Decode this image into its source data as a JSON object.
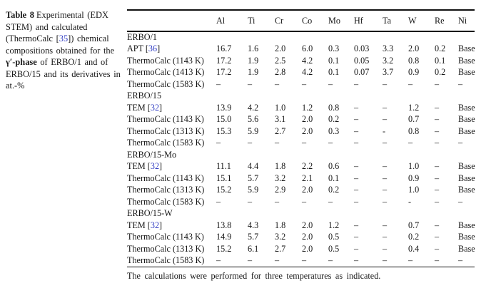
{
  "colors": {
    "reference_link": "#3440c4",
    "text": "#161616",
    "rule": "#111111"
  },
  "caption": {
    "table_label": "Table 8",
    "line1_rest": "Experimental (EDX",
    "line2": "STEM) and calculated",
    "line3_pre": "(ThermoCalc [",
    "line3_ref": "35",
    "line3_post": "]) chemical",
    "line4": "compositions obtained for the",
    "line5_bold": "γ′-phase",
    "line5_rest": " of ERBO/1 and of",
    "line6": "ERBO/15 and its derivatives in",
    "line7": "at.-%"
  },
  "table": {
    "columns": [
      "Al",
      "Ti",
      "Cr",
      "Co",
      "Mo",
      "Hf",
      "Ta",
      "W",
      "Re",
      "Ni"
    ],
    "rows": [
      {
        "type": "section",
        "label": "ERBO/1"
      },
      {
        "type": "data",
        "label_pre": "APT [",
        "ref": "36",
        "label_post": "]",
        "values": [
          "16.7",
          "1.6",
          "2.0",
          "6.0",
          "0.3",
          "0.03",
          "3.3",
          "2.0",
          "0.2",
          "Base"
        ]
      },
      {
        "type": "data",
        "label": "ThermoCalc (1143 K)",
        "values": [
          "17.2",
          "1.9",
          "2.5",
          "4.2",
          "0.1",
          "0.05",
          "3.2",
          "0.8",
          "0.1",
          "Base"
        ]
      },
      {
        "type": "data",
        "label": "ThermoCalc (1413 K)",
        "values": [
          "17.2",
          "1.9",
          "2.8",
          "4.2",
          "0.1",
          "0.07",
          "3.7",
          "0.9",
          "0.2",
          "Base"
        ]
      },
      {
        "type": "data",
        "label": "ThermoCalc (1583 K)",
        "values": [
          "–",
          "–",
          "–",
          "–",
          "–",
          "–",
          "–",
          "–",
          "–",
          "–"
        ]
      },
      {
        "type": "section",
        "label": "ERBO/15"
      },
      {
        "type": "data",
        "label_pre": "TEM [",
        "ref": "32",
        "label_post": "]",
        "values": [
          "13.9",
          "4.2",
          "1.0",
          "1.2",
          "0.8",
          "–",
          "–",
          "1.2",
          "–",
          "Base"
        ]
      },
      {
        "type": "data",
        "label": "ThermoCalc (1143 K)",
        "values": [
          "15.0",
          "5.6",
          "3.1",
          "2.0",
          "0.2",
          "–",
          "–",
          "0.7",
          "–",
          "Base"
        ]
      },
      {
        "type": "data",
        "label": "ThermoCalc (1313 K)",
        "values": [
          "15.3",
          "5.9",
          "2.7",
          "2.0",
          "0.3",
          "–",
          "-",
          "0.8",
          "–",
          "Base"
        ]
      },
      {
        "type": "data",
        "label": "ThermoCalc (1583 K)",
        "values": [
          "–",
          "–",
          "–",
          "–",
          "–",
          "–",
          "–",
          "–",
          "–",
          "–"
        ]
      },
      {
        "type": "section",
        "label": "ERBO/15-Mo"
      },
      {
        "type": "data",
        "label_pre": "TEM [",
        "ref": "32",
        "label_post": "]",
        "values": [
          "11.1",
          "4.4",
          "1.8",
          "2.2",
          "0.6",
          "–",
          "–",
          "1.0",
          "–",
          "Base"
        ]
      },
      {
        "type": "data",
        "label": "ThermoCalc (1143 K)",
        "values": [
          "15.1",
          "5.7",
          "3.2",
          "2.1",
          "0.1",
          "–",
          "–",
          "0.9",
          "–",
          "Base"
        ]
      },
      {
        "type": "data",
        "label": "ThermoCalc (1313 K)",
        "values": [
          "15.2",
          "5.9",
          "2.9",
          "2.0",
          "0.2",
          "–",
          "–",
          "1.0",
          "–",
          "Base"
        ]
      },
      {
        "type": "data",
        "label": "ThermoCalc (1583 K)",
        "values": [
          "–",
          "–",
          "–",
          "–",
          "–",
          "–",
          "–",
          "-",
          "–",
          "–"
        ]
      },
      {
        "type": "section",
        "label": "ERBO/15-W"
      },
      {
        "type": "data",
        "label_pre": "TEM [",
        "ref": "32",
        "label_post": "]",
        "values": [
          "13.8",
          "4.3",
          "1.8",
          "2.0",
          "1.2",
          "–",
          "–",
          "0.7",
          "–",
          "Base"
        ]
      },
      {
        "type": "data",
        "label": "ThermoCalc (1143 K)",
        "values": [
          "14.9",
          "5.7",
          "3.2",
          "2.0",
          "0.5",
          "–",
          "–",
          "0.2",
          "–",
          "Base"
        ]
      },
      {
        "type": "data",
        "label": "ThermoCalc (1313 K)",
        "values": [
          "15.2",
          "6.1",
          "2.7",
          "2.0",
          "0.5",
          "–",
          "–",
          "0.4",
          "–",
          "Base"
        ]
      },
      {
        "type": "data",
        "label": "ThermoCalc (1583 K)",
        "values": [
          "–",
          "–",
          "–",
          "–",
          "–",
          "–",
          "–",
          "–",
          "–",
          "–"
        ]
      }
    ],
    "footnote": "The calculations were performed for three temperatures as indicated."
  }
}
